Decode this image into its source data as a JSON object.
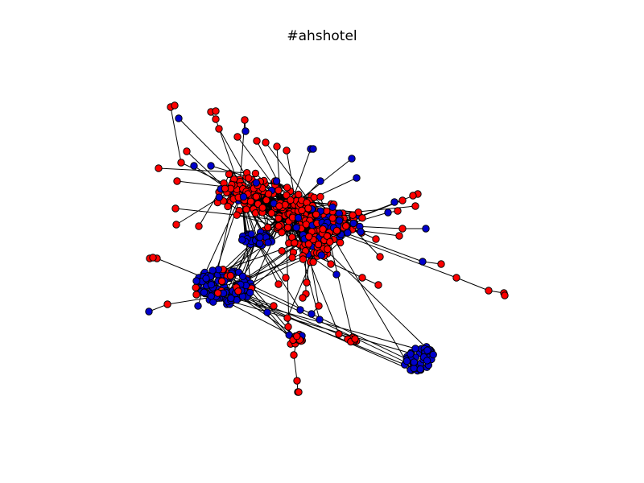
{
  "figure": {
    "title": "#ahshotel"
  },
  "colors": {
    "background": "#ffffff",
    "edge": "#000000",
    "node_outline": "#000000",
    "red_node": "#ff0000",
    "blue_node": "#0000cc"
  },
  "network": {
    "node_groups": [
      "red",
      "blue"
    ],
    "layout": "force-directed",
    "axes_visible": false
  }
}
